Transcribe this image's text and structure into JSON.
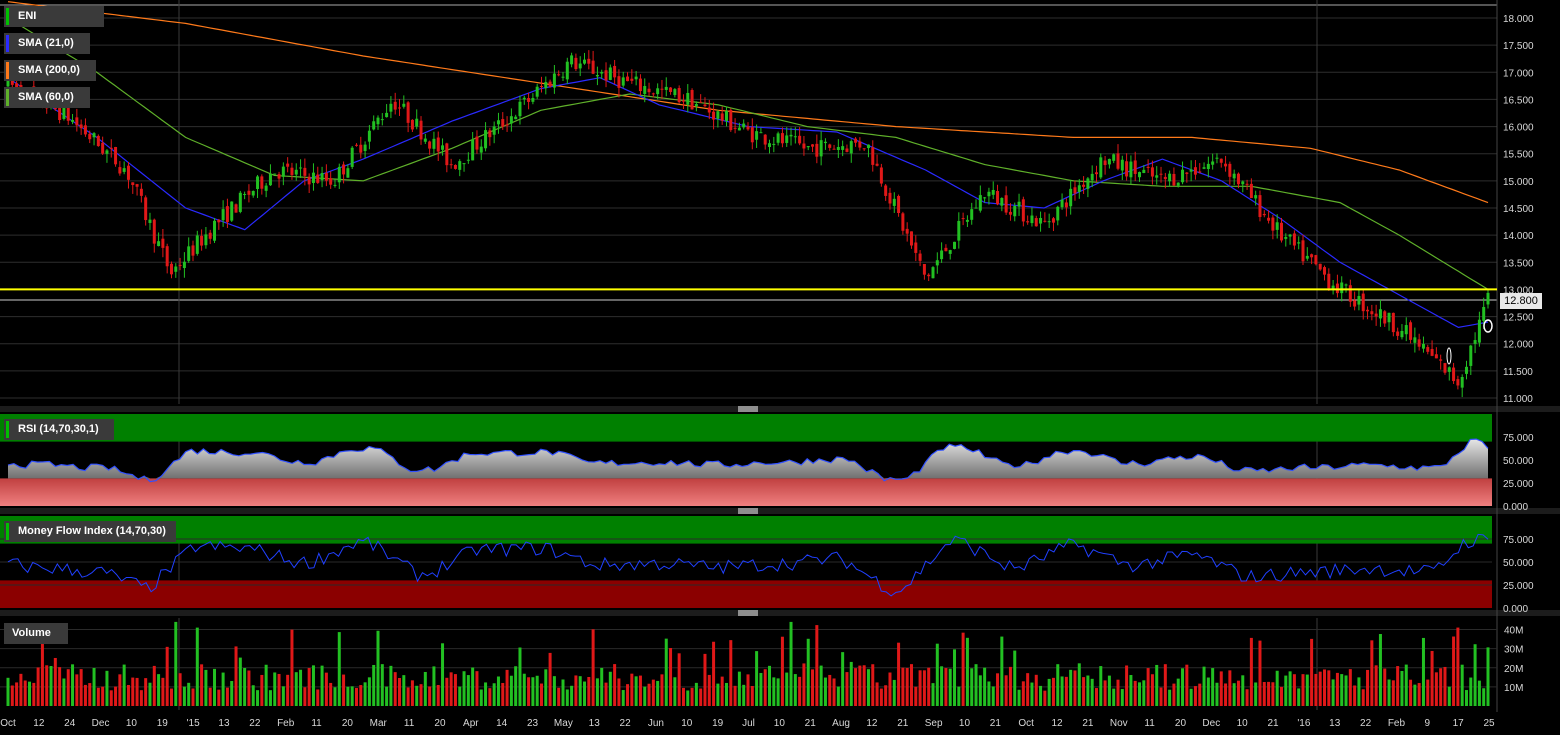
{
  "main_panel": {
    "legend": [
      {
        "label": "ENI",
        "color": "#00c000"
      },
      {
        "label": "SMA (21,0)",
        "color": "#2a2aff"
      },
      {
        "label": "SMA (200,0)",
        "color": "#ff7a1a"
      },
      {
        "label": "SMA (60,0)",
        "color": "#5fb02a"
      }
    ],
    "price_ticks": [
      "18.000",
      "17.500",
      "17.000",
      "16.500",
      "16.000",
      "15.500",
      "15.000",
      "14.500",
      "14.000",
      "13.500",
      "13.000",
      "12.500",
      "12.000",
      "11.500",
      "11.000"
    ],
    "last_price_label": "12.800"
  },
  "rsi_panel": {
    "label": "RSI (14,70,30,1)",
    "ticks": [
      "75.000",
      "50.000",
      "25.000",
      "0.000"
    ]
  },
  "mfi_panel": {
    "label": "Money Flow Index (14,70,30)",
    "ticks": [
      "75.000",
      "50.000",
      "25.000",
      "0.000"
    ]
  },
  "volume_panel": {
    "label": "Volume",
    "ticks": [
      "40M",
      "30M",
      "20M",
      "10M"
    ]
  },
  "x_axis_labels": [
    "Oct",
    "12",
    "24",
    "Dec",
    "10",
    "19",
    "'15",
    "13",
    "22",
    "Feb",
    "11",
    "20",
    "Mar",
    "11",
    "20",
    "Apr",
    "14",
    "23",
    "May",
    "13",
    "22",
    "Jun",
    "10",
    "19",
    "Jul",
    "10",
    "21",
    "Aug",
    "12",
    "21",
    "Sep",
    "10",
    "21",
    "Oct",
    "12",
    "21",
    "Nov",
    "11",
    "20",
    "Dec",
    "10",
    "21",
    "'16",
    "13",
    "22",
    "Feb",
    "9",
    "17",
    "25"
  ],
  "colors": {
    "up": "#22c022",
    "down": "#e01818",
    "sma21": "#2a2aff",
    "sma200": "#ff7a1a",
    "sma60": "#5fb02a",
    "support_line": "#ffff00",
    "rsi_line": "#3050ff",
    "mfi_line": "#2040ff",
    "overbought": "#008000",
    "oversold_rsi": "#f08080",
    "oversold_mfi": "#8b0000"
  },
  "chart_data": [
    {
      "type": "line",
      "y_range": [
        11.0,
        18.0
      ],
      "series": [
        {
          "name": "ENI",
          "x_days": [
            0,
            20,
            40,
            55,
            70,
            90,
            110,
            130,
            150,
            170,
            190,
            210,
            230,
            250,
            270,
            290,
            310,
            330,
            350,
            370,
            390,
            410,
            430,
            450,
            470,
            490,
            500
          ],
          "values": [
            16.8,
            16.2,
            15.2,
            13.3,
            14.2,
            15.2,
            15.0,
            16.5,
            15.3,
            16.2,
            17.2,
            16.8,
            16.5,
            15.9,
            15.6,
            15.7,
            13.2,
            14.8,
            14.2,
            15.4,
            15.0,
            15.4,
            14.0,
            13.0,
            12.3,
            11.3,
            12.8
          ]
        },
        {
          "name": "SMA (21,0)",
          "x_days": [
            0,
            30,
            60,
            80,
            100,
            120,
            150,
            180,
            200,
            220,
            250,
            280,
            310,
            330,
            350,
            370,
            390,
            410,
            430,
            450,
            470,
            490,
            500
          ],
          "values": [
            16.9,
            15.8,
            14.5,
            14.1,
            15.0,
            15.4,
            16.1,
            16.7,
            16.9,
            16.4,
            16.0,
            15.9,
            15.2,
            14.6,
            14.5,
            15.0,
            15.4,
            15.0,
            14.3,
            13.5,
            12.9,
            12.3,
            12.4
          ]
        },
        {
          "name": "SMA (200,0)",
          "x_days": [
            0,
            60,
            120,
            180,
            240,
            300,
            360,
            400,
            440,
            470,
            500
          ],
          "values": [
            18.3,
            17.9,
            17.3,
            16.8,
            16.3,
            16.0,
            15.8,
            15.8,
            15.6,
            15.2,
            14.6
          ]
        },
        {
          "name": "SMA (60,0)",
          "x_days": [
            0,
            30,
            60,
            90,
            120,
            150,
            180,
            210,
            240,
            270,
            300,
            330,
            360,
            390,
            420,
            450,
            470,
            500
          ],
          "values": [
            18.0,
            17.0,
            15.8,
            15.1,
            15.0,
            15.6,
            16.3,
            16.6,
            16.4,
            16.0,
            15.8,
            15.3,
            15.0,
            14.9,
            14.9,
            14.6,
            14.0,
            13.0
          ]
        }
      ],
      "support_level": 13.0,
      "last_price": 12.8
    },
    {
      "type": "area",
      "name": "RSI",
      "y_range": [
        0,
        100
      ],
      "overbought": 70,
      "oversold": 30
    },
    {
      "type": "line",
      "name": "Money Flow Index",
      "y_range": [
        0,
        100
      ],
      "overbought": 70,
      "oversold": 30
    },
    {
      "type": "bar",
      "name": "Volume",
      "y_range": [
        0,
        45
      ]
    }
  ]
}
